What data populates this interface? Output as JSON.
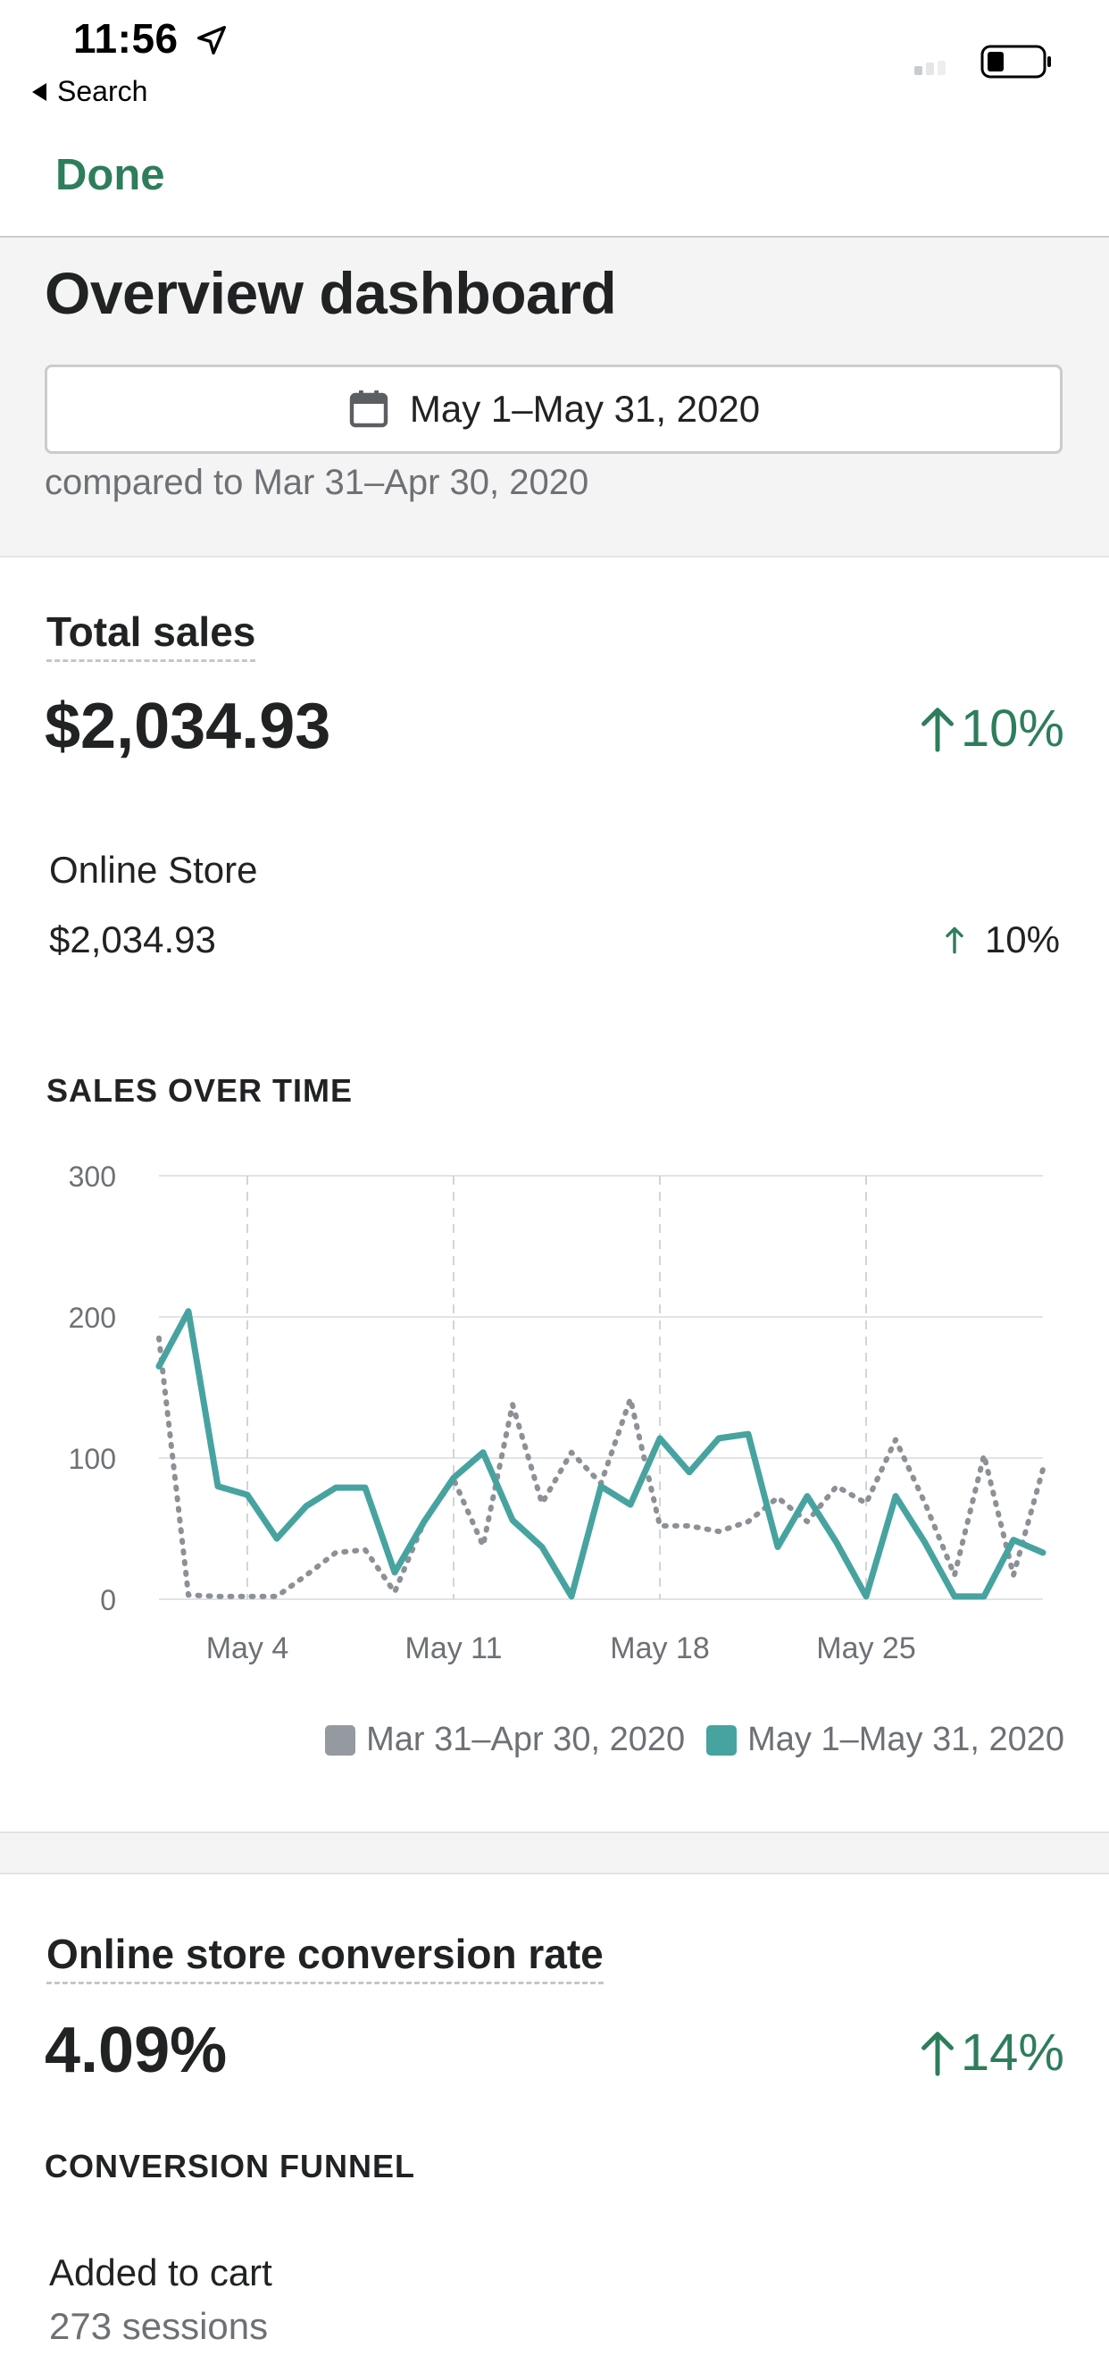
{
  "status_bar": {
    "time": "11:56",
    "back_label": "Search"
  },
  "nav": {
    "done_label": "Done"
  },
  "header": {
    "title": "Overview dashboard",
    "date_range": "May 1–May 31, 2020",
    "compare_text": "compared to Mar 31–Apr 30, 2020"
  },
  "total_sales": {
    "title": "Total sales",
    "value": "$2,034.93",
    "change": "10%",
    "channel_label": "Online Store",
    "channel_value": "$2,034.93",
    "channel_change": "10%",
    "chart_caption": "SALES OVER TIME"
  },
  "chart_data": {
    "type": "line",
    "title": "SALES OVER TIME",
    "xlabel": "",
    "ylabel": "",
    "ylim": [
      0,
      300
    ],
    "yticks": [
      "300",
      "200",
      "100",
      "0"
    ],
    "xticks": [
      "May 4",
      "May 11",
      "May 18",
      "May 25"
    ],
    "x": [
      1,
      2,
      3,
      4,
      5,
      6,
      7,
      8,
      9,
      10,
      11,
      12,
      13,
      14,
      15,
      16,
      17,
      18,
      19,
      20,
      21,
      22,
      23,
      24,
      25,
      26,
      27,
      28,
      29,
      30,
      31
    ],
    "grid": true,
    "legend_position": "bottom-right",
    "series": [
      {
        "name": "Mar 31–Apr 30, 2020",
        "color": "#8c9196",
        "style": "dotted",
        "values": [
          185,
          3,
          2,
          2,
          2,
          17,
          33,
          35,
          5,
          55,
          85,
          38,
          138,
          68,
          104,
          82,
          142,
          52,
          52,
          48,
          55,
          72,
          55,
          80,
          68,
          113,
          68,
          17,
          102,
          17,
          92
        ]
      },
      {
        "name": "May 1–May 31, 2020",
        "color": "#47a3a0",
        "style": "solid",
        "values": [
          165,
          204,
          80,
          74,
          43,
          66,
          79,
          79,
          19,
          55,
          86,
          104,
          56,
          37,
          2,
          80,
          67,
          114,
          90,
          114,
          117,
          37,
          73,
          40,
          2,
          73,
          40,
          2,
          2,
          42,
          33
        ]
      }
    ]
  },
  "conversion": {
    "title": "Online store conversion rate",
    "value": "4.09%",
    "change": "14%",
    "funnel_caption": "CONVERSION FUNNEL",
    "funnel_step_label": "Added to cart",
    "funnel_step_sessions": "273 sessions"
  },
  "colors": {
    "accent_green": "#2e7d5b",
    "current_series": "#47a3a0",
    "previous_series": "#8c9196"
  }
}
